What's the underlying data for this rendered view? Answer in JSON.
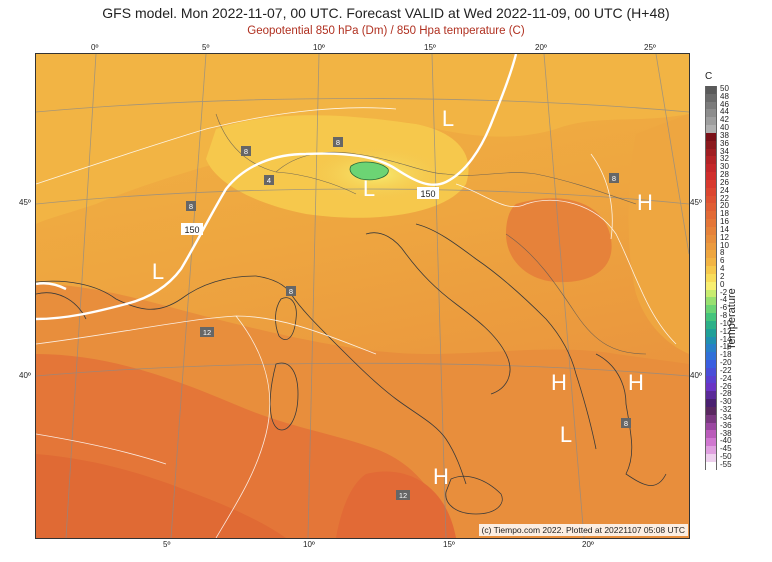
{
  "header": {
    "title": "GFS model. Mon 2022-11-07, 00 UTC. Forecast VALID at Wed 2022-11-09, 00 UTC (H+48)",
    "subtitle": "Geopotential 850 hPa (Dm) / 850 Hpa temperature (C)"
  },
  "axes": {
    "top_lon": [
      "0º",
      "5º",
      "10º",
      "15º",
      "20º",
      "25º"
    ],
    "bottom_lon": [
      "5º",
      "10º",
      "15º",
      "20º"
    ],
    "left_lat": [
      "45º",
      "40º"
    ],
    "right_lat": [
      "45º",
      "40º"
    ]
  },
  "pressure_systems": [
    {
      "label": "L",
      "name": "low-north-austria"
    },
    {
      "label": "L",
      "name": "low-alps"
    },
    {
      "label": "L",
      "name": "low-southern-france"
    },
    {
      "label": "H",
      "name": "high-east"
    },
    {
      "label": "H",
      "name": "high-balkans-west"
    },
    {
      "label": "H",
      "name": "high-balkans-east"
    },
    {
      "label": "L",
      "name": "low-ionian"
    },
    {
      "label": "H",
      "name": "high-sicily"
    }
  ],
  "contour_labels": [
    "150",
    "150"
  ],
  "isotherm_labels": [
    "8",
    "4",
    "8",
    "8",
    "12",
    "8",
    "8",
    "8",
    "12"
  ],
  "legend": {
    "unit": "C",
    "title": "Temperature",
    "items": [
      {
        "value": "50",
        "color": "#5a5a5a"
      },
      {
        "value": "48",
        "color": "#6b6b6b"
      },
      {
        "value": "46",
        "color": "#7c7c7c"
      },
      {
        "value": "44",
        "color": "#8d8d8d"
      },
      {
        "value": "42",
        "color": "#9e9e9e"
      },
      {
        "value": "40",
        "color": "#b0b0b0"
      },
      {
        "value": "38",
        "color": "#7a1018"
      },
      {
        "value": "36",
        "color": "#8c1a1e"
      },
      {
        "value": "34",
        "color": "#a01e22"
      },
      {
        "value": "32",
        "color": "#b42326"
      },
      {
        "value": "30",
        "color": "#c4272a"
      },
      {
        "value": "28",
        "color": "#d02e2c"
      },
      {
        "value": "26",
        "color": "#d83a2e"
      },
      {
        "value": "24",
        "color": "#dc4630"
      },
      {
        "value": "22",
        "color": "#de5232"
      },
      {
        "value": "20",
        "color": "#e05e34"
      },
      {
        "value": "18",
        "color": "#e26a36"
      },
      {
        "value": "16",
        "color": "#e47638"
      },
      {
        "value": "14",
        "color": "#e6823a"
      },
      {
        "value": "12",
        "color": "#e88e3c"
      },
      {
        "value": "10",
        "color": "#eb9a3e"
      },
      {
        "value": "8",
        "color": "#eea640"
      },
      {
        "value": "6",
        "color": "#f2b444"
      },
      {
        "value": "4",
        "color": "#f6c84c"
      },
      {
        "value": "2",
        "color": "#f8dc5a"
      },
      {
        "value": "0",
        "color": "#f8ee70"
      },
      {
        "value": "-2",
        "color": "#c8ec70"
      },
      {
        "value": "-4",
        "color": "#98e070"
      },
      {
        "value": "-6",
        "color": "#6cd474"
      },
      {
        "value": "-8",
        "color": "#44c47c"
      },
      {
        "value": "-10",
        "color": "#2cb088"
      },
      {
        "value": "-12",
        "color": "#20a098"
      },
      {
        "value": "-14",
        "color": "#2090b0"
      },
      {
        "value": "-16",
        "color": "#2880c8"
      },
      {
        "value": "-18",
        "color": "#3070d8"
      },
      {
        "value": "-20",
        "color": "#3a5ee0"
      },
      {
        "value": "-22",
        "color": "#4a4ed8"
      },
      {
        "value": "-24",
        "color": "#5a40d0"
      },
      {
        "value": "-26",
        "color": "#6a34c4"
      },
      {
        "value": "-28",
        "color": "#5a2a98"
      },
      {
        "value": "-30",
        "color": "#4a2070"
      },
      {
        "value": "-32",
        "color": "#5a2860"
      },
      {
        "value": "-34",
        "color": "#7a3880"
      },
      {
        "value": "-36",
        "color": "#9a48a0"
      },
      {
        "value": "-38",
        "color": "#ba5cba"
      },
      {
        "value": "-40",
        "color": "#d078d0"
      },
      {
        "value": "-45",
        "color": "#e0a0e0"
      },
      {
        "value": "-50",
        "color": "#eed0ee"
      },
      {
        "value": "-55",
        "color": "#ffffff"
      }
    ]
  },
  "credit": "(c) Tiempo.com 2022. Plotted at 20221107 05:08 UTC"
}
